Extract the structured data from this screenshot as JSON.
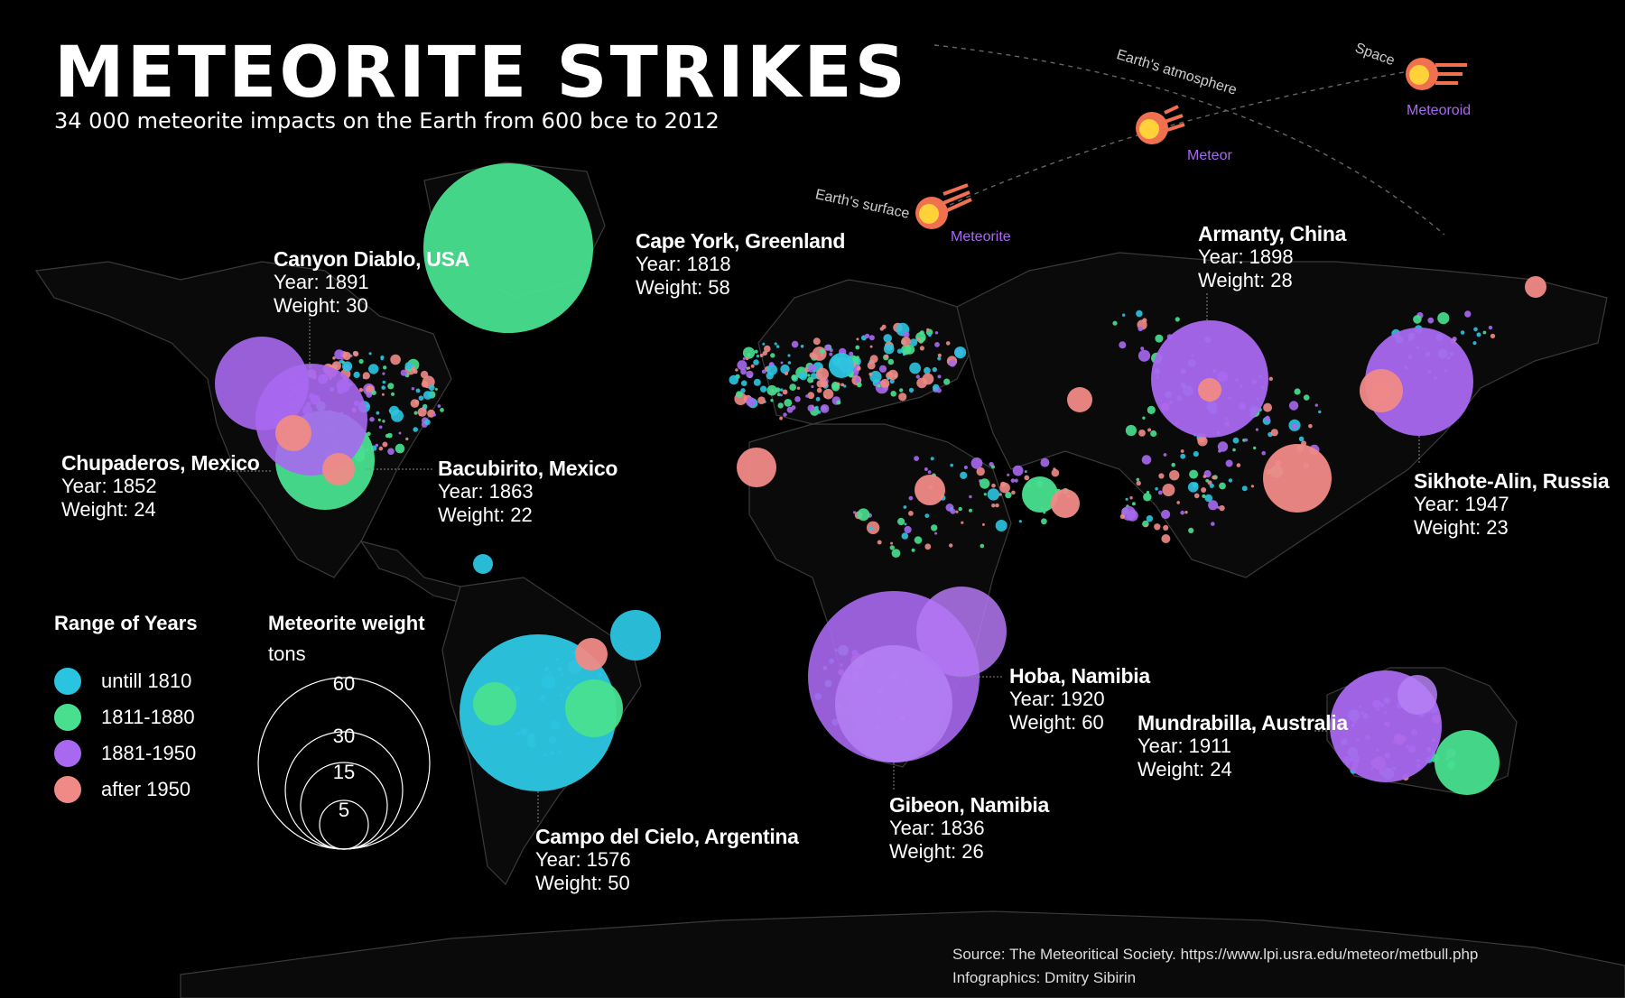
{
  "header": {
    "title": "METEORITE STRIKES",
    "subtitle": "34 000 meteorite impacts on the Earth from 600 bce to 2012"
  },
  "colors": {
    "until_1810": "#2bc4e0",
    "y1811_1880": "#48e08f",
    "y1881_1950": "#a968f0",
    "after_1950": "#f08a86",
    "land_outline": "#3a3a3a",
    "label_line": "#888888"
  },
  "legend": {
    "range_title": "Range of Years",
    "ranges": [
      {
        "label": "untill 1810",
        "color": "#2bc4e0"
      },
      {
        "label": "1811-1880",
        "color": "#48e08f"
      },
      {
        "label": "1881-1950",
        "color": "#a968f0"
      },
      {
        "label": "after 1950",
        "color": "#f08a86"
      }
    ],
    "weight_title": "Meteorite weight",
    "weight_unit": "tons",
    "weight_values": [
      60,
      30,
      15,
      5
    ]
  },
  "diagram": {
    "space": "Space",
    "atmosphere": "Earth's atmosphere",
    "surface": "Earth's surface",
    "meteoroid": "Meteoroid",
    "meteor": "Meteor",
    "meteorite": "Meteorite"
  },
  "labels": {
    "cape_york": {
      "name": "Cape York, Greenland",
      "year": "Year: 1818",
      "weight": "Weight: 58"
    },
    "canyon_diablo": {
      "name": "Canyon Diablo, USA",
      "year": "Year: 1891",
      "weight": "Weight: 30"
    },
    "chupaderos": {
      "name": "Chupaderos, Mexico",
      "year": "Year: 1852",
      "weight": "Weight: 24"
    },
    "bacubirito": {
      "name": "Bacubirito, Mexico",
      "year": "Year: 1863",
      "weight": "Weight: 22"
    },
    "campo": {
      "name": "Campo del Cielo, Argentina",
      "year": "Year: 1576",
      "weight": "Weight: 50"
    },
    "hoba": {
      "name": "Hoba, Namibia",
      "year": "Year: 1920",
      "weight": "Weight: 60"
    },
    "gibeon": {
      "name": "Gibeon, Namibia",
      "year": "Year: 1836",
      "weight": "Weight: 26"
    },
    "armanty": {
      "name": "Armanty, China",
      "year": "Year: 1898",
      "weight": "Weight: 28"
    },
    "sikhote": {
      "name": "Sikhote-Alin, Russia",
      "year": "Year: 1947",
      "weight": "Weight: 23"
    },
    "mundrabilla": {
      "name": "Mundrabilla, Australia",
      "year": "Year: 1911",
      "weight": "Weight: 24"
    }
  },
  "source": {
    "line1": "Source: The Meteoritical Society. https://www.lpi.usra.edu/meteor/metbull.php",
    "line2": "Infographics: Dmitry Sibirin"
  },
  "large_strikes": [
    {
      "place": "Cape York, Greenland",
      "year": 1818,
      "weight_tons": 58,
      "period": "1811-1880",
      "lon": -64,
      "lat": 76
    },
    {
      "place": "Canyon Diablo, USA",
      "year": 1891,
      "weight_tons": 30,
      "period": "1881-1950",
      "lon": -111,
      "lat": 35
    },
    {
      "place": "Chupaderos, Mexico",
      "year": 1852,
      "weight_tons": 24,
      "period": "1811-1880",
      "lon": -105,
      "lat": 27
    },
    {
      "place": "Bacubirito, Mexico",
      "year": 1863,
      "weight_tons": 22,
      "period": "1811-1880",
      "lon": -107,
      "lat": 26
    },
    {
      "place": "Campo del Cielo, Argentina",
      "year": 1576,
      "weight_tons": 50,
      "period": "untill 1810",
      "lon": -61,
      "lat": -27
    },
    {
      "place": "Hoba, Namibia",
      "year": 1920,
      "weight_tons": 60,
      "period": "1881-1950",
      "lon": 18,
      "lat": -19
    },
    {
      "place": "Gibeon, Namibia",
      "year": 1836,
      "weight_tons": 26,
      "period": "1811-1880",
      "lon": 18,
      "lat": -25
    },
    {
      "place": "Armanty, China",
      "year": 1898,
      "weight_tons": 28,
      "period": "1881-1950",
      "lon": 90,
      "lat": 47
    },
    {
      "place": "Sikhote-Alin, Russia",
      "year": 1947,
      "weight_tons": 23,
      "period": "1881-1950",
      "lon": 134,
      "lat": 46
    },
    {
      "place": "Mundrabilla, Australia",
      "year": 1911,
      "weight_tons": 24,
      "period": "1881-1950",
      "lon": 127,
      "lat": -31
    }
  ]
}
